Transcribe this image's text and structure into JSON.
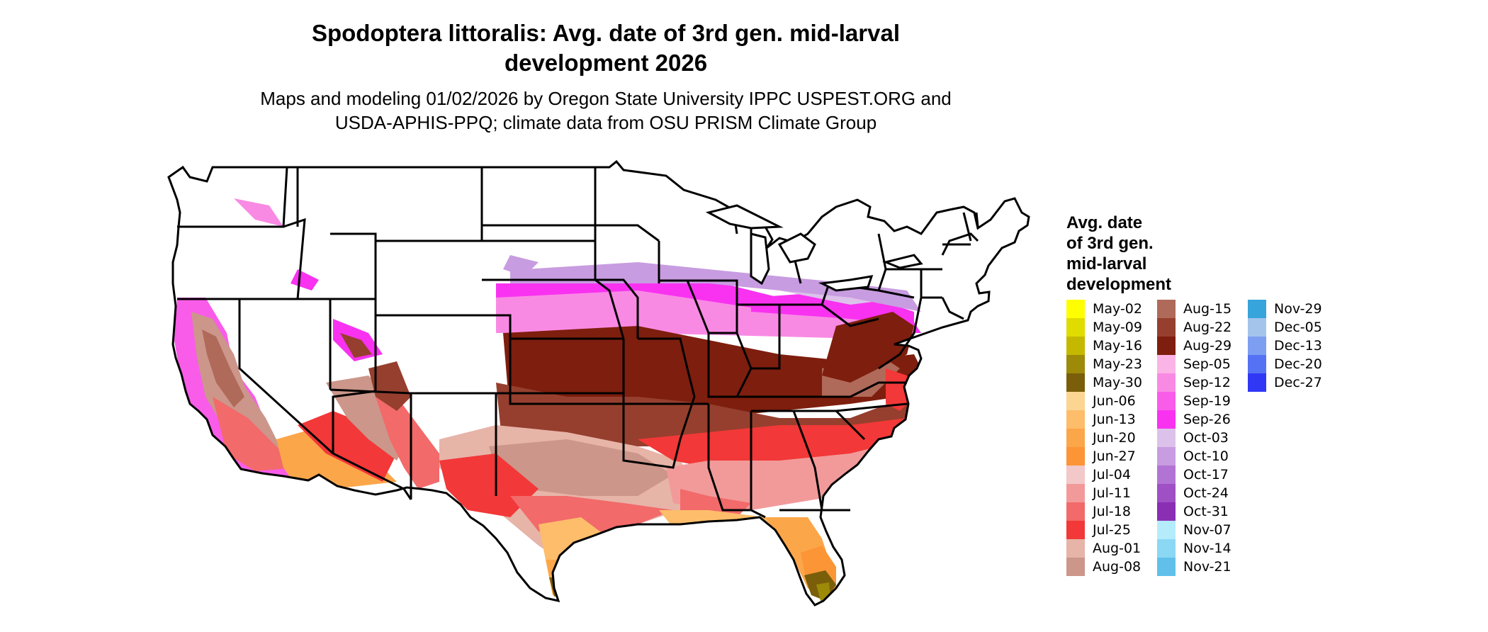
{
  "title_line1": "Spodoptera littoralis: Avg. date of 3rd gen. mid-larval",
  "title_line2": "development 2026",
  "subtitle_line1": "Maps and modeling 01/02/2026 by Oregon State University IPPC USPEST.ORG and",
  "subtitle_line2": "USDA-APHIS-PPQ; climate data from OSU PRISM Climate Group",
  "legend": {
    "title_lines": [
      "Avg. date",
      "of 3rd gen.",
      "mid-larval",
      "development"
    ],
    "items": [
      {
        "label": "May-02",
        "color": "#ffff00"
      },
      {
        "label": "May-09",
        "color": "#e0dc00"
      },
      {
        "label": "May-16",
        "color": "#c4b900"
      },
      {
        "label": "May-23",
        "color": "#9c8a08"
      },
      {
        "label": "May-30",
        "color": "#7a5e0a"
      },
      {
        "label": "Jun-06",
        "color": "#fcd592"
      },
      {
        "label": "Jun-13",
        "color": "#fdbd6a"
      },
      {
        "label": "Jun-20",
        "color": "#fca64a"
      },
      {
        "label": "Jun-27",
        "color": "#fb9536"
      },
      {
        "label": "Jul-04",
        "color": "#f2c8c8"
      },
      {
        "label": "Jul-11",
        "color": "#f29a9a"
      },
      {
        "label": "Jul-18",
        "color": "#f26a6a"
      },
      {
        "label": "Jul-25",
        "color": "#f23838"
      },
      {
        "label": "Aug-01",
        "color": "#e7b4a8"
      },
      {
        "label": "Aug-08",
        "color": "#cc968a"
      },
      {
        "label": "Aug-15",
        "color": "#b06a5a"
      },
      {
        "label": "Aug-22",
        "color": "#963f2e"
      },
      {
        "label": "Aug-29",
        "color": "#7e1e0e"
      },
      {
        "label": "Sep-05",
        "color": "#fbb4e6"
      },
      {
        "label": "Sep-12",
        "color": "#f98ae4"
      },
      {
        "label": "Sep-19",
        "color": "#f95ce8"
      },
      {
        "label": "Sep-26",
        "color": "#f832f0"
      },
      {
        "label": "Oct-03",
        "color": "#dcc2ea"
      },
      {
        "label": "Oct-10",
        "color": "#c89ce0"
      },
      {
        "label": "Oct-17",
        "color": "#b274d4"
      },
      {
        "label": "Oct-24",
        "color": "#9e50c4"
      },
      {
        "label": "Oct-31",
        "color": "#8a2eb4"
      },
      {
        "label": "Nov-07",
        "color": "#b4ecfc"
      },
      {
        "label": "Nov-14",
        "color": "#8ad8f4"
      },
      {
        "label": "Nov-21",
        "color": "#60c0ea"
      },
      {
        "label": "Nov-29",
        "color": "#38a4dc"
      },
      {
        "label": "Dec-05",
        "color": "#a4c4ec"
      },
      {
        "label": "Dec-13",
        "color": "#7e9ef2"
      },
      {
        "label": "Dec-20",
        "color": "#5672f4"
      },
      {
        "label": "Dec-27",
        "color": "#3038f6"
      }
    ]
  }
}
